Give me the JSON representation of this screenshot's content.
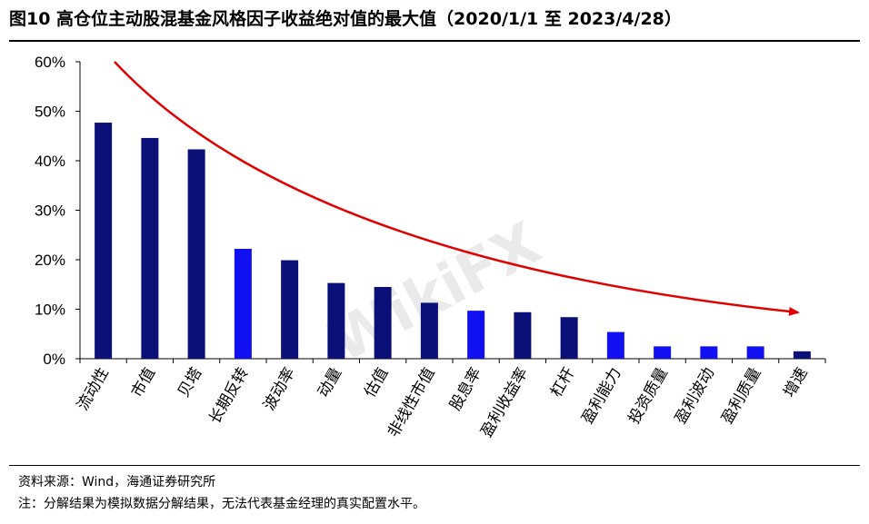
{
  "title": "图10 高仓位主动股混基金风格因子收益绝对值的最大值（2020/1/1 至 2023/4/28）",
  "source": "资料来源：Wind，海通证券研究所",
  "note": "注：分解结果为模拟数据分解结果，无法代表基金经理的真实配置水平。",
  "watermark": "WikiFX",
  "colors": {
    "dark_bar": "#0b0f78",
    "highlight_bar": "#1010f0",
    "arrow": "#e00000"
  },
  "chart_data": {
    "type": "bar",
    "title": "",
    "xlabel": "",
    "ylabel": "",
    "ylim": [
      0,
      60
    ],
    "ytick_values": [
      0,
      10,
      20,
      30,
      40,
      50,
      60
    ],
    "ytick_labels": [
      "0%",
      "10%",
      "20%",
      "30%",
      "40%",
      "50%",
      "60%"
    ],
    "grid": false,
    "legend": "none",
    "categories": [
      "流动性",
      "市值",
      "贝塔",
      "长期反转",
      "波动率",
      "动量",
      "估值",
      "非线性市值",
      "股息率",
      "盈利收益率",
      "杠杆",
      "盈利能力",
      "投资质量",
      "盈利波动",
      "盈利质量",
      "增速"
    ],
    "values": [
      47.7,
      44.6,
      42.3,
      22.2,
      19.9,
      15.3,
      14.5,
      11.3,
      9.7,
      9.4,
      8.4,
      5.4,
      2.5,
      2.5,
      2.5,
      1.5
    ],
    "highlight": [
      false,
      false,
      false,
      true,
      false,
      false,
      false,
      false,
      true,
      false,
      false,
      true,
      true,
      true,
      true,
      false
    ],
    "annotation": "red decreasing arrow trend curve"
  }
}
